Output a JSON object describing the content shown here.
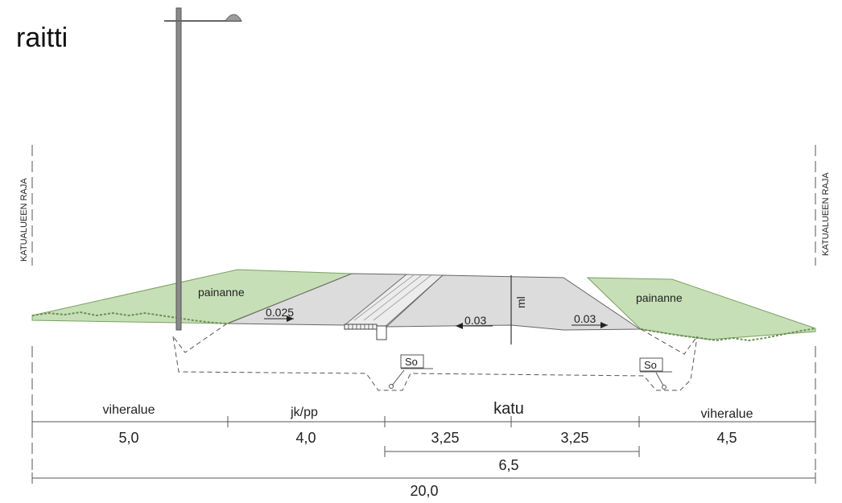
{
  "title": "raitti",
  "boundary_label_left": "KATUALUEEN RAJA",
  "boundary_label_right": "KATUALUEEN RAJA",
  "swale_left": "painanne",
  "swale_right": "painanne",
  "centerline_label": "ml",
  "slope_path": "0.025",
  "slope_road_left": "0.03",
  "slope_road_right": "0.03",
  "drain_label_left": "So",
  "drain_label_right": "So",
  "zones": {
    "green_left": "viheralue",
    "path": "jk/pp",
    "street": "katu",
    "green_right": "viheralue"
  },
  "widths": {
    "green_left": "5,0",
    "path": "4,0",
    "lane_left": "3,25",
    "lane_right": "3,25",
    "street_total": "6,5",
    "green_right": "4,5",
    "overall": "20,0"
  },
  "colors": {
    "grass": "#c7dfb7",
    "grass_edge": "#6c8f52",
    "asphalt": "#dcdcdc",
    "line": "#444444"
  }
}
